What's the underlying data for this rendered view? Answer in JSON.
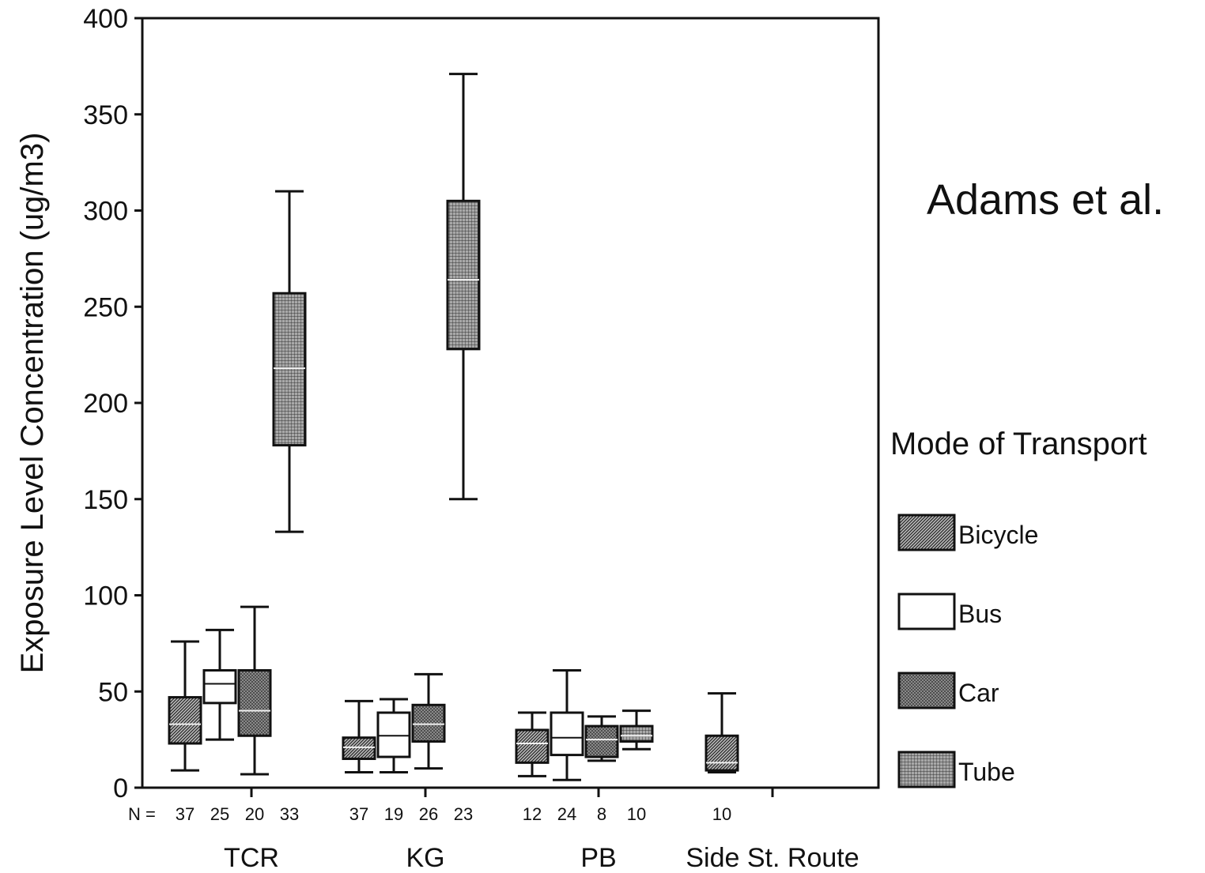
{
  "attribution": "Adams et al.",
  "chart_data": {
    "type": "box",
    "ylabel": "Exposure Level Concentration (ug/m3)",
    "xlabel": "",
    "ylim": [
      0,
      400
    ],
    "yticks": [
      0,
      50,
      100,
      150,
      200,
      250,
      300,
      350,
      400
    ],
    "n_label": "N =",
    "categories": [
      "TCR",
      "KG",
      "PB",
      "Side St. Route"
    ],
    "legend": {
      "title": "Mode of Transport",
      "entries": [
        "Bicycle",
        "Bus",
        "Car",
        "Tube"
      ]
    },
    "series": [
      {
        "name": "Bicycle",
        "color": "#5a5a5a",
        "pattern": "diagonal",
        "boxes": [
          {
            "category": "TCR",
            "n": "37",
            "min": 9,
            "q1": 23,
            "median": 33,
            "q3": 47,
            "max": 76
          },
          {
            "category": "KG",
            "n": "37",
            "min": 8,
            "q1": 15,
            "median": 21,
            "q3": 26,
            "max": 45
          },
          {
            "category": "PB",
            "n": "12",
            "min": 6,
            "q1": 13,
            "median": 23,
            "q3": 30,
            "max": 39
          },
          {
            "category": "Side St. Route",
            "n": "10",
            "min": 8,
            "q1": 9,
            "median": 13,
            "q3": 27,
            "max": 49
          }
        ]
      },
      {
        "name": "Bus",
        "color": "#ffffff",
        "pattern": "none",
        "boxes": [
          {
            "category": "TCR",
            "n": "25",
            "min": 25,
            "q1": 44,
            "median": 54,
            "q3": 61,
            "max": 82
          },
          {
            "category": "KG",
            "n": "19",
            "min": 8,
            "q1": 16,
            "median": 27,
            "q3": 39,
            "max": 46
          },
          {
            "category": "PB",
            "n": "24",
            "min": 4,
            "q1": 17,
            "median": 26,
            "q3": 39,
            "max": 61
          }
        ]
      },
      {
        "name": "Car",
        "color": "#6e6e6e",
        "pattern": "dots",
        "boxes": [
          {
            "category": "TCR",
            "n": "20",
            "min": 7,
            "q1": 27,
            "median": 40,
            "q3": 61,
            "max": 94
          },
          {
            "category": "KG",
            "n": "26",
            "min": 10,
            "q1": 24,
            "median": 33,
            "q3": 43,
            "max": 59
          },
          {
            "category": "PB",
            "n": "8",
            "min": 14,
            "q1": 16,
            "median": 25,
            "q3": 32,
            "max": 37
          }
        ]
      },
      {
        "name": "Tube",
        "color": "#7c7c7c",
        "pattern": "grid",
        "boxes": [
          {
            "category": "TCR",
            "n": "33",
            "min": 133,
            "q1": 178,
            "median": 218,
            "q3": 257,
            "max": 310
          },
          {
            "category": "KG",
            "n": "23",
            "min": 150,
            "q1": 228,
            "median": 264,
            "q3": 305,
            "max": 371
          },
          {
            "category": "PB",
            "n": "10",
            "min": 20,
            "q1": 24,
            "median": 27,
            "q3": 32,
            "max": 40
          }
        ]
      }
    ]
  }
}
